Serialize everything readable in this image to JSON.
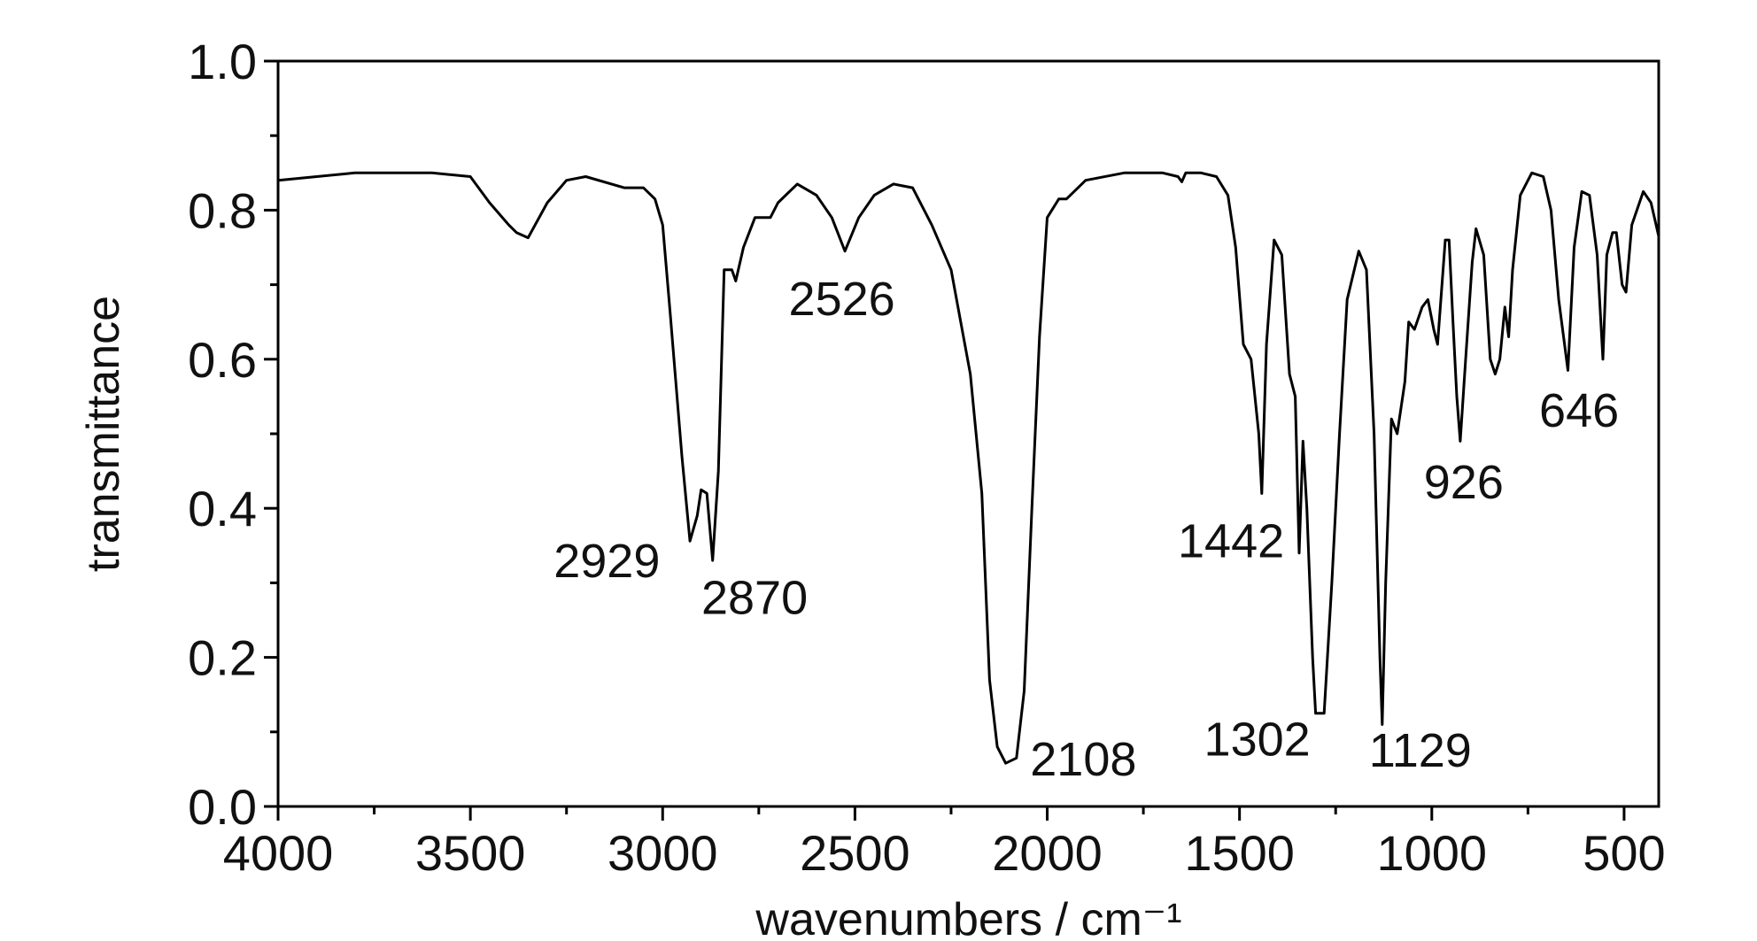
{
  "chart_data": {
    "type": "line",
    "xlabel": "wavenumbers / cm⁻¹",
    "ylabel": "transmittance",
    "xlim": [
      4000,
      410
    ],
    "ylim": [
      0,
      1
    ],
    "xticks": [
      4000,
      3500,
      3000,
      2500,
      2000,
      1500,
      1000,
      500
    ],
    "yticks": [
      {
        "value": 0,
        "label": "0.0"
      },
      0.2,
      0.4,
      0.6,
      0.8,
      {
        "value": 1,
        "label": "1.0"
      }
    ],
    "xminorticks": [
      3750,
      3250,
      2750,
      2250,
      1750,
      1250,
      750
    ],
    "yminorticks": [
      0.1,
      0.3,
      0.5,
      0.7,
      0.9
    ],
    "color": "#000000",
    "x": [
      4000,
      3800,
      3600,
      3500,
      3450,
      3400,
      3380,
      3350,
      3300,
      3250,
      3200,
      3100,
      3050,
      3020,
      3000,
      2980,
      2950,
      2929,
      2910,
      2900,
      2885,
      2870,
      2855,
      2840,
      2820,
      2810,
      2790,
      2760,
      2720,
      2700,
      2650,
      2600,
      2560,
      2526,
      2490,
      2450,
      2400,
      2350,
      2300,
      2250,
      2200,
      2170,
      2150,
      2130,
      2108,
      2080,
      2060,
      2040,
      2020,
      2000,
      1970,
      1950,
      1900,
      1800,
      1700,
      1660,
      1650,
      1640,
      1600,
      1560,
      1530,
      1510,
      1490,
      1470,
      1450,
      1442,
      1430,
      1410,
      1390,
      1370,
      1355,
      1345,
      1335,
      1325,
      1310,
      1302,
      1280,
      1260,
      1240,
      1220,
      1190,
      1170,
      1150,
      1135,
      1129,
      1120,
      1105,
      1090,
      1070,
      1060,
      1045,
      1025,
      1010,
      995,
      985,
      965,
      955,
      945,
      935,
      926,
      912,
      895,
      885,
      865,
      848,
      835,
      823,
      810,
      800,
      790,
      770,
      740,
      710,
      690,
      670,
      646,
      630,
      610,
      590,
      570,
      555,
      545,
      530,
      520,
      505,
      495,
      480,
      450,
      430,
      410
    ],
    "y": [
      0.84,
      0.85,
      0.85,
      0.845,
      0.81,
      0.78,
      0.77,
      0.763,
      0.81,
      0.84,
      0.845,
      0.83,
      0.83,
      0.815,
      0.78,
      0.66,
      0.47,
      0.356,
      0.39,
      0.425,
      0.42,
      0.33,
      0.45,
      0.72,
      0.72,
      0.705,
      0.75,
      0.79,
      0.79,
      0.81,
      0.835,
      0.82,
      0.79,
      0.745,
      0.79,
      0.82,
      0.835,
      0.83,
      0.78,
      0.72,
      0.58,
      0.42,
      0.17,
      0.08,
      0.058,
      0.065,
      0.155,
      0.4,
      0.63,
      0.79,
      0.815,
      0.815,
      0.84,
      0.85,
      0.85,
      0.845,
      0.838,
      0.85,
      0.85,
      0.845,
      0.82,
      0.75,
      0.62,
      0.6,
      0.5,
      0.42,
      0.62,
      0.76,
      0.74,
      0.58,
      0.55,
      0.34,
      0.49,
      0.4,
      0.2,
      0.125,
      0.125,
      0.3,
      0.5,
      0.68,
      0.745,
      0.72,
      0.5,
      0.2,
      0.11,
      0.3,
      0.52,
      0.5,
      0.57,
      0.65,
      0.64,
      0.67,
      0.68,
      0.64,
      0.62,
      0.76,
      0.76,
      0.65,
      0.55,
      0.49,
      0.6,
      0.73,
      0.775,
      0.74,
      0.6,
      0.58,
      0.6,
      0.67,
      0.63,
      0.72,
      0.82,
      0.85,
      0.845,
      0.8,
      0.68,
      0.585,
      0.75,
      0.825,
      0.82,
      0.74,
      0.6,
      0.74,
      0.77,
      0.77,
      0.7,
      0.69,
      0.78,
      0.825,
      0.81,
      0.765
    ],
    "annotations": [
      {
        "text": "2929",
        "x": 3145,
        "y": 0.33
      },
      {
        "text": "2870",
        "x": 2761,
        "y": 0.281
      },
      {
        "text": "2526",
        "x": 2534,
        "y": 0.682
      },
      {
        "text": "2108",
        "x": 1906,
        "y": 0.064
      },
      {
        "text": "1442",
        "x": 1522,
        "y": 0.357
      },
      {
        "text": "1302",
        "x": 1454,
        "y": 0.091
      },
      {
        "text": "1129",
        "x": 1030,
        "y": 0.076
      },
      {
        "text": "926",
        "x": 917,
        "y": 0.436
      },
      {
        "text": "646",
        "x": 617,
        "y": 0.532
      }
    ]
  }
}
